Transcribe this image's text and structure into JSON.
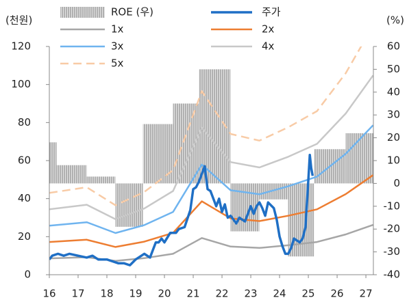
{
  "chart_data": {
    "type": "line",
    "y_label": "(천원)",
    "y2_label": "(%)",
    "xlim": [
      16,
      27.26
    ],
    "xticks": [
      16,
      17,
      18,
      19,
      20,
      21,
      22,
      23,
      24,
      25,
      26,
      27
    ],
    "ylim": [
      0,
      120
    ],
    "yticks": [
      0,
      20,
      40,
      60,
      80,
      100,
      120
    ],
    "y2lim": [
      -40,
      60
    ],
    "y2ticks": [
      -40,
      -30,
      -20,
      -10,
      0,
      10,
      20,
      30,
      40,
      50,
      60
    ],
    "series": [
      {
        "name": "ROE (우)",
        "type": "bar",
        "axis": "y2",
        "color": "#a6a6a6",
        "bins": [
          16,
          16.25,
          17.3,
          18.3,
          19.25,
          20.3,
          21.2,
          22.3,
          23.3,
          24.3,
          25.2,
          26.3,
          27.25
        ],
        "values": [
          18,
          8,
          3,
          -19,
          26,
          35,
          50,
          -21,
          -7,
          -32,
          15,
          22
        ]
      },
      {
        "name": "주가",
        "color": "#1f6fc5",
        "width": 3.5,
        "x": [
          16.0,
          16.1,
          16.3,
          16.5,
          16.7,
          17.0,
          17.3,
          17.5,
          17.7,
          18.0,
          18.2,
          18.4,
          18.6,
          18.8,
          19.0,
          19.2,
          19.3,
          19.5,
          19.6,
          19.7,
          19.8,
          19.9,
          20.0,
          20.2,
          20.4,
          20.5,
          20.7,
          20.9,
          21.0,
          21.1,
          21.2,
          21.3,
          21.4,
          21.5,
          21.6,
          21.8,
          21.9,
          22.0,
          22.1,
          22.2,
          22.3,
          22.5,
          22.6,
          22.8,
          22.9,
          23.0,
          23.1,
          23.2,
          23.3,
          23.4,
          23.5,
          23.6,
          23.8,
          23.9,
          24.0,
          24.1,
          24.2,
          24.3,
          24.4,
          24.5,
          24.7,
          24.8,
          24.9,
          25.0,
          25.05,
          25.1,
          25.15
        ],
        "values": [
          8,
          10,
          11,
          10,
          11,
          10,
          9,
          10,
          8,
          8,
          7,
          6,
          6,
          5,
          8,
          10,
          11,
          9,
          13,
          17,
          17,
          19,
          17,
          22,
          22,
          24,
          25,
          34,
          45,
          46,
          49,
          53,
          57,
          45,
          44,
          36,
          40,
          33,
          37,
          30,
          31,
          27,
          30,
          28,
          32,
          36,
          32,
          36,
          38,
          35,
          31,
          38,
          35,
          29,
          20,
          15,
          11,
          11,
          14,
          19,
          17,
          19,
          25,
          50,
          63,
          56,
          52
        ]
      },
      {
        "name": "1x",
        "color": "#a6a6a6",
        "width": 2.5,
        "x": [
          16,
          17.3,
          18.3,
          19.3,
          20.3,
          21.3,
          22.3,
          23.3,
          24.3,
          25.3,
          26.3,
          27.25
        ],
        "values": [
          8.6,
          9.2,
          7.3,
          8.7,
          11,
          19.3,
          14.8,
          14.1,
          15.5,
          17.2,
          21.2,
          26.2
        ]
      },
      {
        "name": "2x",
        "color": "#ed7d31",
        "width": 2.5,
        "x": [
          16,
          17.3,
          18.3,
          19.3,
          20.3,
          21.3,
          22.3,
          23.3,
          24.3,
          25.3,
          26.3,
          27.25
        ],
        "values": [
          17.2,
          18.4,
          14.6,
          17.4,
          22,
          38.6,
          29.6,
          28.2,
          31,
          34.4,
          42.4,
          52.4
        ]
      },
      {
        "name": "3x",
        "color": "#6fb4ef",
        "width": 2.5,
        "x": [
          16,
          17.3,
          18.3,
          19.3,
          20.3,
          21.3,
          22.3,
          23.3,
          24.3,
          25.3,
          26.3,
          27.25
        ],
        "values": [
          25.8,
          27.6,
          21.9,
          26.1,
          33,
          57.9,
          44.4,
          42.3,
          46.5,
          51.6,
          63.6,
          78.6
        ]
      },
      {
        "name": "4x",
        "color": "#c8c8c8",
        "width": 2.5,
        "x": [
          16,
          17.3,
          18.3,
          19.3,
          20.3,
          21.3,
          22.3,
          23.3,
          24.3,
          25.3,
          26.3,
          27.25
        ],
        "values": [
          34.4,
          36.8,
          29.2,
          34.8,
          44,
          77.2,
          59.2,
          56.4,
          62,
          68.8,
          84.8,
          104.8
        ]
      },
      {
        "name": "5x",
        "color": "#f8cba6",
        "width": 2.5,
        "dash": true,
        "x": [
          16,
          17.3,
          18.3,
          19.3,
          20.3,
          21.3,
          22.3,
          23.3,
          24.3,
          25.3,
          26.3,
          27.25
        ],
        "values": [
          43,
          46,
          36.5,
          43.5,
          55,
          96.5,
          74,
          70.5,
          77.5,
          86,
          106,
          131
        ]
      }
    ]
  }
}
